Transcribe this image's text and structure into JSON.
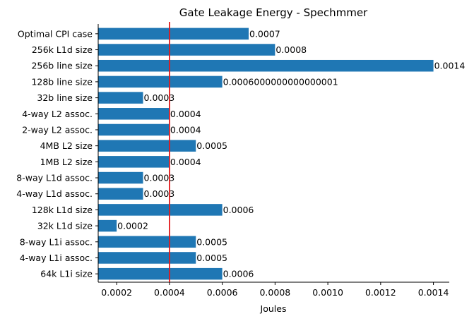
{
  "chart_data": {
    "type": "bar",
    "orientation": "horizontal",
    "title": "Gate Leakage Energy - Spechmmer",
    "xlabel": "Joules",
    "ylabel": "",
    "categories": [
      "Optimal CPI case",
      "256k L1d size",
      "256b line size",
      "128b line size",
      "32b line size",
      "4-way L2 assoc.",
      "2-way L2 assoc.",
      "4MB L2 size",
      "1MB L2 size",
      "8-way L1d assoc.",
      "4-way L1d assoc.",
      "128k L1d size",
      "32k L1d size",
      "8-way L1i assoc.",
      "4-way L1i assoc.",
      "64k L1i size"
    ],
    "values": [
      0.0007,
      0.0008,
      0.0014,
      0.0006,
      0.0003,
      0.0004,
      0.0004,
      0.0005,
      0.0004,
      0.0003,
      0.0003,
      0.0006,
      0.0002,
      0.0005,
      0.0005,
      0.0006
    ],
    "value_labels": [
      "0.0007",
      "0.0008",
      "0.0014",
      "0.0006000000000000001",
      "0.0003",
      "0.0004",
      "0.0004",
      "0.0005",
      "0.0004",
      "0.0003",
      "0.0003",
      "0.0006",
      "0.0002",
      "0.0005",
      "0.0005",
      "0.0006"
    ],
    "xlim": [
      0.00013,
      0.00146
    ],
    "xticks": [
      0.0002,
      0.0004,
      0.0006,
      0.0008,
      0.001,
      0.0012,
      0.0014
    ],
    "xtick_labels": [
      "0.0002",
      "0.0004",
      "0.0006",
      "0.0008",
      "0.0010",
      "0.0012",
      "0.0014"
    ],
    "reference_line": {
      "x": 0.0004,
      "color": "#e31a1c"
    },
    "bar_color": "#1f77b4",
    "grid": false
  }
}
